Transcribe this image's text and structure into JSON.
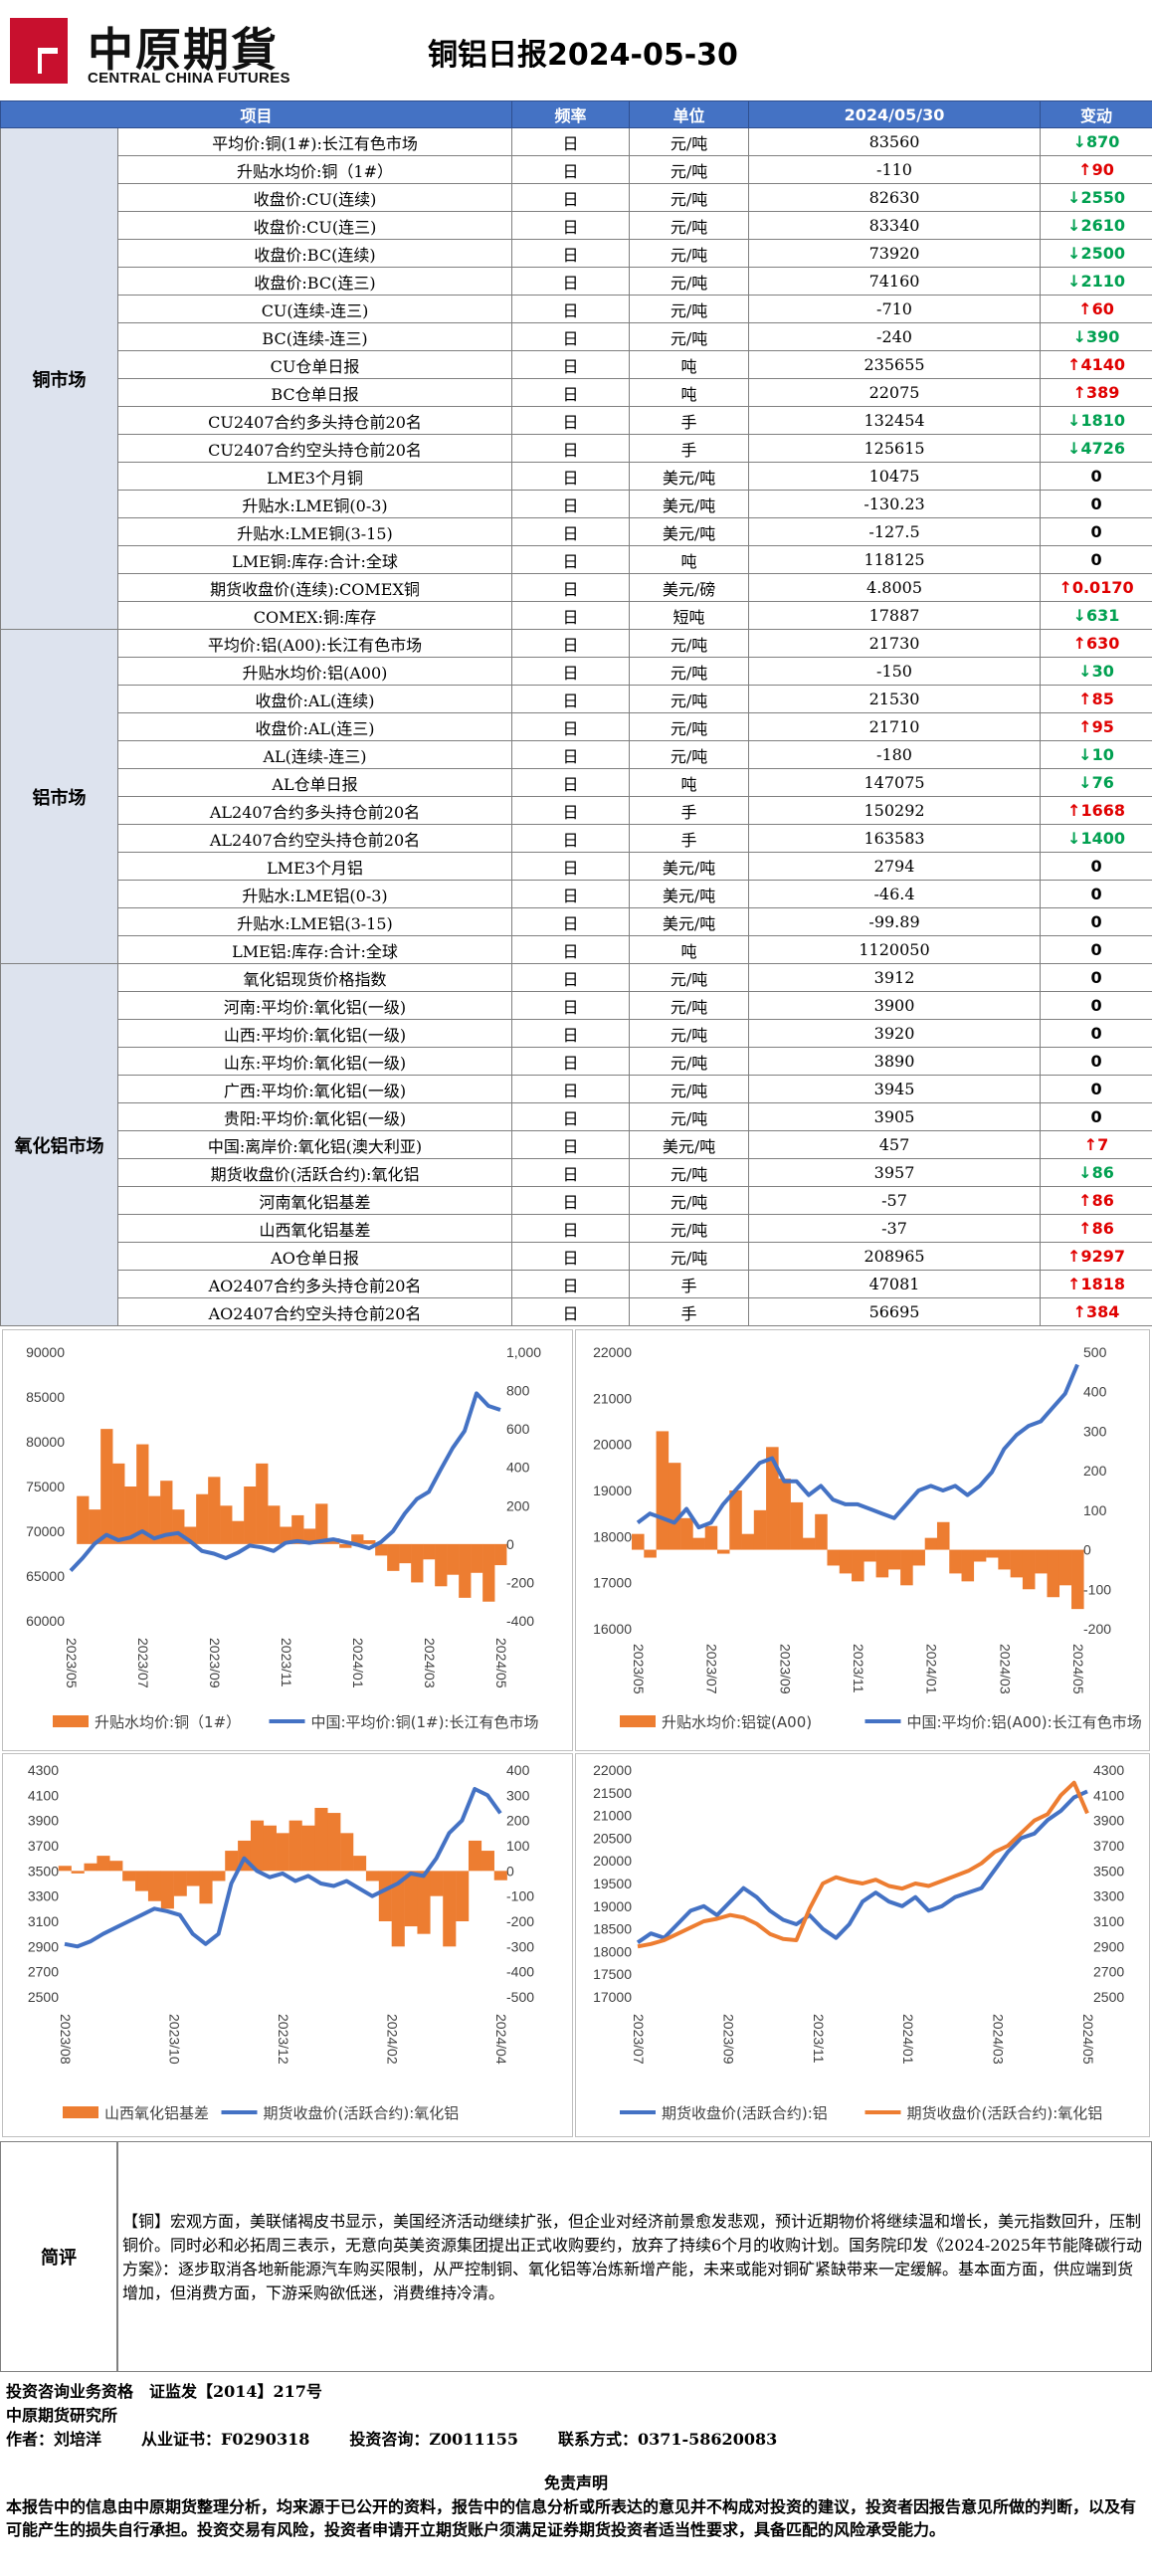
{
  "header": {
    "logo_cn": "中原期貨",
    "logo_en": "CENTRAL CHINA FUTURES",
    "title": "铜铝日报2024-05-30",
    "colors": {
      "logo_red": "#c8102e",
      "header_blue": "#4472c4"
    }
  },
  "table": {
    "columns": [
      "项目",
      "频率",
      "单位",
      "2024/05/30",
      "变动"
    ],
    "groups": [
      {
        "category": "铜市场",
        "rows": [
          {
            "item": "平均价:铜(1#):长江有色市场",
            "freq": "日",
            "unit": "元/吨",
            "value": "83560",
            "dir": "down",
            "arrow": "↓",
            "chg": "870"
          },
          {
            "item": "升贴水均价:铜（1#）",
            "freq": "日",
            "unit": "元/吨",
            "value": "-110",
            "dir": "up",
            "arrow": "↑",
            "chg": "90"
          },
          {
            "item": "收盘价:CU(连续)",
            "freq": "日",
            "unit": "元/吨",
            "value": "82630",
            "dir": "down",
            "arrow": "↓",
            "chg": "2550"
          },
          {
            "item": "收盘价:CU(连三)",
            "freq": "日",
            "unit": "元/吨",
            "value": "83340",
            "dir": "down",
            "arrow": "↓",
            "chg": "2610"
          },
          {
            "item": "收盘价:BC(连续)",
            "freq": "日",
            "unit": "元/吨",
            "value": "73920",
            "dir": "down",
            "arrow": "↓",
            "chg": "2500"
          },
          {
            "item": "收盘价:BC(连三)",
            "freq": "日",
            "unit": "元/吨",
            "value": "74160",
            "dir": "down",
            "arrow": "↓",
            "chg": "2110"
          },
          {
            "item": "CU(连续-连三)",
            "freq": "日",
            "unit": "元/吨",
            "value": "-710",
            "dir": "up",
            "arrow": "↑",
            "chg": "60"
          },
          {
            "item": "BC(连续-连三)",
            "freq": "日",
            "unit": "元/吨",
            "value": "-240",
            "dir": "down",
            "arrow": "↓",
            "chg": "390"
          },
          {
            "item": "CU仓单日报",
            "freq": "日",
            "unit": "吨",
            "value": "235655",
            "dir": "up",
            "arrow": "↑",
            "chg": "4140"
          },
          {
            "item": "BC仓单日报",
            "freq": "日",
            "unit": "吨",
            "value": "22075",
            "dir": "up",
            "arrow": "↑",
            "chg": "389"
          },
          {
            "item": "CU2407合约多头持仓前20名",
            "freq": "日",
            "unit": "手",
            "value": "132454",
            "dir": "down",
            "arrow": "↓",
            "chg": "1810"
          },
          {
            "item": "CU2407合约空头持仓前20名",
            "freq": "日",
            "unit": "手",
            "value": "125615",
            "dir": "down",
            "arrow": "↓",
            "chg": "4726"
          },
          {
            "item": "LME3个月铜",
            "freq": "日",
            "unit": "美元/吨",
            "value": "10475",
            "dir": "flat",
            "arrow": "",
            "chg": "0"
          },
          {
            "item": "升贴水:LME铜(0-3)",
            "freq": "日",
            "unit": "美元/吨",
            "value": "-130.23",
            "dir": "flat",
            "arrow": "",
            "chg": "0"
          },
          {
            "item": "升贴水:LME铜(3-15)",
            "freq": "日",
            "unit": "美元/吨",
            "value": "-127.5",
            "dir": "flat",
            "arrow": "",
            "chg": "0"
          },
          {
            "item": "LME铜:库存:合计:全球",
            "freq": "日",
            "unit": "吨",
            "value": "118125",
            "dir": "flat",
            "arrow": "",
            "chg": "0"
          },
          {
            "item": "期货收盘价(连续):COMEX铜",
            "freq": "日",
            "unit": "美元/磅",
            "value": "4.8005",
            "dir": "up",
            "arrow": "↑",
            "chg": "0.0170"
          },
          {
            "item": "COMEX:铜:库存",
            "freq": "日",
            "unit": "短吨",
            "value": "17887",
            "dir": "down",
            "arrow": "↓",
            "chg": "631"
          }
        ]
      },
      {
        "category": "铝市场",
        "rows": [
          {
            "item": "平均价:铝(A00):长江有色市场",
            "freq": "日",
            "unit": "元/吨",
            "value": "21730",
            "dir": "up",
            "arrow": "↑",
            "chg": "630"
          },
          {
            "item": "升贴水均价:铝(A00)",
            "freq": "日",
            "unit": "元/吨",
            "value": "-150",
            "dir": "down",
            "arrow": "↓",
            "chg": "30"
          },
          {
            "item": "收盘价:AL(连续)",
            "freq": "日",
            "unit": "元/吨",
            "value": "21530",
            "dir": "up",
            "arrow": "↑",
            "chg": "85"
          },
          {
            "item": "收盘价:AL(连三)",
            "freq": "日",
            "unit": "元/吨",
            "value": "21710",
            "dir": "up",
            "arrow": "↑",
            "chg": "95"
          },
          {
            "item": "AL(连续-连三)",
            "freq": "日",
            "unit": "元/吨",
            "value": "-180",
            "dir": "down",
            "arrow": "↓",
            "chg": "10"
          },
          {
            "item": "AL仓单日报",
            "freq": "日",
            "unit": "吨",
            "value": "147075",
            "dir": "down",
            "arrow": "↓",
            "chg": "76"
          },
          {
            "item": "AL2407合约多头持仓前20名",
            "freq": "日",
            "unit": "手",
            "value": "150292",
            "dir": "up",
            "arrow": "↑",
            "chg": "1668"
          },
          {
            "item": "AL2407合约空头持仓前20名",
            "freq": "日",
            "unit": "手",
            "value": "163583",
            "dir": "down",
            "arrow": "↓",
            "chg": "1400"
          },
          {
            "item": "LME3个月铝",
            "freq": "日",
            "unit": "美元/吨",
            "value": "2794",
            "dir": "flat",
            "arrow": "",
            "chg": "0"
          },
          {
            "item": "升贴水:LME铝(0-3)",
            "freq": "日",
            "unit": "美元/吨",
            "value": "-46.4",
            "dir": "flat",
            "arrow": "",
            "chg": "0"
          },
          {
            "item": "升贴水:LME铝(3-15)",
            "freq": "日",
            "unit": "美元/吨",
            "value": "-99.89",
            "dir": "flat",
            "arrow": "",
            "chg": "0"
          },
          {
            "item": "LME铝:库存:合计:全球",
            "freq": "日",
            "unit": "吨",
            "value": "1120050",
            "dir": "flat",
            "arrow": "",
            "chg": "0"
          }
        ]
      },
      {
        "category": "氧化铝市场",
        "rows": [
          {
            "item": "氧化铝现货价格指数",
            "freq": "日",
            "unit": "元/吨",
            "value": "3912",
            "dir": "flat",
            "arrow": "",
            "chg": "0"
          },
          {
            "item": "河南:平均价:氧化铝(一级)",
            "freq": "日",
            "unit": "元/吨",
            "value": "3900",
            "dir": "flat",
            "arrow": "",
            "chg": "0"
          },
          {
            "item": "山西:平均价:氧化铝(一级)",
            "freq": "日",
            "unit": "元/吨",
            "value": "3920",
            "dir": "flat",
            "arrow": "",
            "chg": "0"
          },
          {
            "item": "山东:平均价:氧化铝(一级)",
            "freq": "日",
            "unit": "元/吨",
            "value": "3890",
            "dir": "flat",
            "arrow": "",
            "chg": "0"
          },
          {
            "item": "广西:平均价:氧化铝(一级)",
            "freq": "日",
            "unit": "元/吨",
            "value": "3945",
            "dir": "flat",
            "arrow": "",
            "chg": "0"
          },
          {
            "item": "贵阳:平均价:氧化铝(一级)",
            "freq": "日",
            "unit": "元/吨",
            "value": "3905",
            "dir": "flat",
            "arrow": "",
            "chg": "0"
          },
          {
            "item": "中国:离岸价:氧化铝(澳大利亚)",
            "freq": "日",
            "unit": "美元/吨",
            "value": "457",
            "dir": "up",
            "arrow": "↑",
            "chg": "7"
          },
          {
            "item": "期货收盘价(活跃合约):氧化铝",
            "freq": "日",
            "unit": "元/吨",
            "value": "3957",
            "dir": "down",
            "arrow": "↓",
            "chg": "86"
          },
          {
            "item": "河南氧化铝基差",
            "freq": "日",
            "unit": "元/吨",
            "value": "-57",
            "dir": "up",
            "arrow": "↑",
            "chg": "86"
          },
          {
            "item": "山西氧化铝基差",
            "freq": "日",
            "unit": "元/吨",
            "value": "-37",
            "dir": "up",
            "arrow": "↑",
            "chg": "86"
          },
          {
            "item": "AO仓单日报",
            "freq": "日",
            "unit": "元/吨",
            "value": "208965",
            "dir": "up",
            "arrow": "↑",
            "chg": "9297"
          },
          {
            "item": "AO2407合约多头持仓前20名",
            "freq": "日",
            "unit": "手",
            "value": "47081",
            "dir": "up",
            "arrow": "↑",
            "chg": "1818"
          },
          {
            "item": "AO2407合约空头持仓前20名",
            "freq": "日",
            "unit": "手",
            "value": "56695",
            "dir": "up",
            "arrow": "↑",
            "chg": "384"
          }
        ]
      }
    ],
    "colors": {
      "up": "#e00000",
      "down": "#00a050"
    }
  },
  "chart_data": [
    {
      "type": "line",
      "ylim": [
        60000,
        90000
      ],
      "yticks": [
        60000,
        65000,
        70000,
        75000,
        80000,
        85000,
        90000
      ],
      "y2lim": [
        -400,
        1000
      ],
      "y2ticks": [
        -400,
        -200,
        0,
        200,
        400,
        600,
        800,
        "1,000"
      ],
      "xticks": [
        "2023/05",
        "2023/07",
        "2023/09",
        "2023/11",
        "2024/01",
        "2024/03",
        "2024/05"
      ],
      "series": [
        {
          "name": "升贴水均价:铜（1#）",
          "kind": "area",
          "axis": "y2",
          "color": "#ed7d31",
          "values": [
            0,
            250,
            180,
            600,
            420,
            300,
            520,
            250,
            330,
            180,
            90,
            260,
            350,
            200,
            120,
            300,
            420,
            200,
            90,
            150,
            80,
            210,
            30,
            -20,
            50,
            20,
            -60,
            -140,
            -100,
            -200,
            -80,
            -220,
            -160,
            -280,
            -150,
            -300,
            -110
          ]
        },
        {
          "name": "中国:平均价:铜(1#):长江有色市场",
          "kind": "line",
          "axis": "y",
          "color": "#4472c4",
          "values": [
            65600,
            67000,
            68600,
            69600,
            69000,
            69300,
            70000,
            69200,
            69600,
            69800,
            68900,
            67800,
            67500,
            67000,
            67600,
            68400,
            68200,
            67800,
            68700,
            68900,
            68700,
            68900,
            69100,
            68800,
            68500,
            68100,
            68800,
            70000,
            72000,
            73600,
            74400,
            76900,
            79300,
            81200,
            85400,
            84000,
            83560
          ]
        }
      ]
    },
    {
      "type": "line",
      "ylim": [
        16000,
        22000
      ],
      "yticks": [
        16000,
        17000,
        18000,
        19000,
        20000,
        21000,
        22000
      ],
      "y2lim": [
        -200,
        500
      ],
      "y2ticks": [
        -200,
        -100,
        0,
        100,
        200,
        300,
        400,
        500
      ],
      "xticks": [
        "2023/05",
        "2023/07",
        "2023/09",
        "2023/11",
        "2024/01",
        "2024/03",
        "2024/05"
      ],
      "series": [
        {
          "name": "升贴水均价:铝锭(A00)",
          "kind": "area",
          "axis": "y2",
          "color": "#ed7d31",
          "values": [
            40,
            -20,
            300,
            220,
            80,
            30,
            60,
            -10,
            150,
            40,
            100,
            260,
            180,
            120,
            30,
            90,
            -40,
            -60,
            -80,
            -30,
            -70,
            -50,
            -90,
            -40,
            30,
            70,
            -60,
            -80,
            -30,
            -20,
            -50,
            -70,
            -100,
            -60,
            -120,
            -90,
            -150
          ]
        },
        {
          "name": "中国:平均价:铝(A00):长江有色市场",
          "kind": "line",
          "axis": "y",
          "color": "#4472c4",
          "values": [
            18300,
            18500,
            18400,
            18300,
            18600,
            18200,
            18300,
            18700,
            19000,
            19300,
            19600,
            19700,
            19200,
            19200,
            18900,
            19100,
            18800,
            18700,
            18700,
            18600,
            18500,
            18400,
            18700,
            19000,
            19100,
            19000,
            19100,
            18900,
            19100,
            19400,
            19900,
            20200,
            20400,
            20500,
            20800,
            21100,
            21730
          ]
        }
      ]
    },
    {
      "type": "line",
      "ylim": [
        2500,
        4300
      ],
      "yticks": [
        2500,
        2700,
        2900,
        3100,
        3300,
        3500,
        3700,
        3900,
        4100,
        4300
      ],
      "y2lim": [
        -500,
        400
      ],
      "y2ticks": [
        -500,
        -400,
        -300,
        -200,
        -100,
        0,
        100,
        200,
        300,
        400
      ],
      "xticks": [
        "2023/08",
        "2023/10",
        "2023/12",
        "2024/02",
        "2024/04"
      ],
      "series": [
        {
          "name": "山西氧化铝基差",
          "kind": "area",
          "axis": "y2",
          "color": "#ed7d31",
          "values": [
            20,
            -10,
            30,
            60,
            40,
            -40,
            -80,
            -120,
            -150,
            -100,
            -60,
            -130,
            -40,
            80,
            120,
            200,
            180,
            150,
            200,
            180,
            250,
            230,
            150,
            60,
            -40,
            -200,
            -300,
            -220,
            -250,
            -100,
            -300,
            -200,
            120,
            80,
            -37
          ]
        },
        {
          "name": "期货收盘价(活跃合约):氧化铝",
          "kind": "line",
          "axis": "y",
          "color": "#4472c4",
          "values": [
            2920,
            2900,
            2940,
            3000,
            3050,
            3100,
            3150,
            3200,
            3180,
            3150,
            3000,
            2920,
            3000,
            3400,
            3600,
            3500,
            3450,
            3480,
            3420,
            3460,
            3400,
            3380,
            3420,
            3360,
            3300,
            3350,
            3400,
            3480,
            3460,
            3600,
            3800,
            3900,
            4150,
            4100,
            3957
          ]
        }
      ]
    },
    {
      "type": "line",
      "ylim": [
        17000,
        22000
      ],
      "yticks": [
        17000,
        17500,
        18000,
        18500,
        19000,
        19500,
        20000,
        20500,
        21000,
        21500,
        22000
      ],
      "y2lim": [
        2500,
        4300
      ],
      "y2ticks": [
        2500,
        2700,
        2900,
        3100,
        3300,
        3500,
        3700,
        3900,
        4100,
        4300
      ],
      "xticks": [
        "2023/07",
        "2023/09",
        "2023/11",
        "2024/01",
        "2024/03",
        "2024/05"
      ],
      "series": [
        {
          "name": "期货收盘价(活跃合约):铝",
          "kind": "line",
          "axis": "y",
          "color": "#4472c4",
          "values": [
            18200,
            18400,
            18300,
            18600,
            18900,
            19000,
            18800,
            19100,
            19400,
            19200,
            18900,
            18700,
            18600,
            18800,
            18500,
            18300,
            18600,
            19100,
            19300,
            19100,
            19000,
            19200,
            18900,
            19000,
            19200,
            19300,
            19400,
            19800,
            20200,
            20500,
            20600,
            20900,
            21100,
            21400,
            21530
          ]
        },
        {
          "name": "期货收盘价(活跃合约):氧化铝",
          "kind": "line",
          "axis": "y2",
          "color": "#ed7d31",
          "values": [
            2900,
            2920,
            2950,
            3000,
            3050,
            3100,
            3120,
            3150,
            3130,
            3080,
            3000,
            2960,
            2950,
            3200,
            3400,
            3450,
            3420,
            3400,
            3430,
            3380,
            3360,
            3400,
            3380,
            3420,
            3460,
            3500,
            3560,
            3650,
            3700,
            3800,
            3900,
            3950,
            4100,
            4200,
            3957
          ]
        }
      ]
    }
  ],
  "summary": {
    "label": "简评",
    "text": "【铜】宏观方面，美联储褐皮书显示，美国经济活动继续扩张，但企业对经济前景愈发悲观，预计近期物价将继续温和增长，美元指数回升，压制铜价。同时必和必拓周三表示，无意向英美资源集团提出正式收购要约，放弃了持续6个月的收购计划。国务院印发《2024-2025年节能降碳行动方案》：逐步取消各地新能源汽车购买限制，从严控制铜、氧化铝等冶炼新增产能，未来或能对铜矿紧缺带来一定缓解。基本面方面，供应端到货增加，但消费方面，下游采购欲低迷，消费维持冷清。"
  },
  "footer": {
    "qualification": "投资咨询业务资格　证监发【2014】217号",
    "institute": "中原期货研究所",
    "author_label": "作者：",
    "author": "刘培洋",
    "cert_label": "从业证书：",
    "cert": "F0290318",
    "consult_label": "投资咨询：",
    "consult": "Z0011155",
    "contact_label": "联系方式：",
    "contact": "0371-58620083",
    "disclaimer_title": "免责声明",
    "disclaimer": "本报告中的信息由中原期货整理分析，均来源于已公开的资料，报告中的信息分析或所表达的意见并不构成对投资的建议，投资者因报告意见所做的判断，以及有可能产生的损失自行承担。投资交易有风险，投资者申请开立期货账户须满足证券期货投资者适当性要求，具备匹配的风险承受能力。"
  }
}
